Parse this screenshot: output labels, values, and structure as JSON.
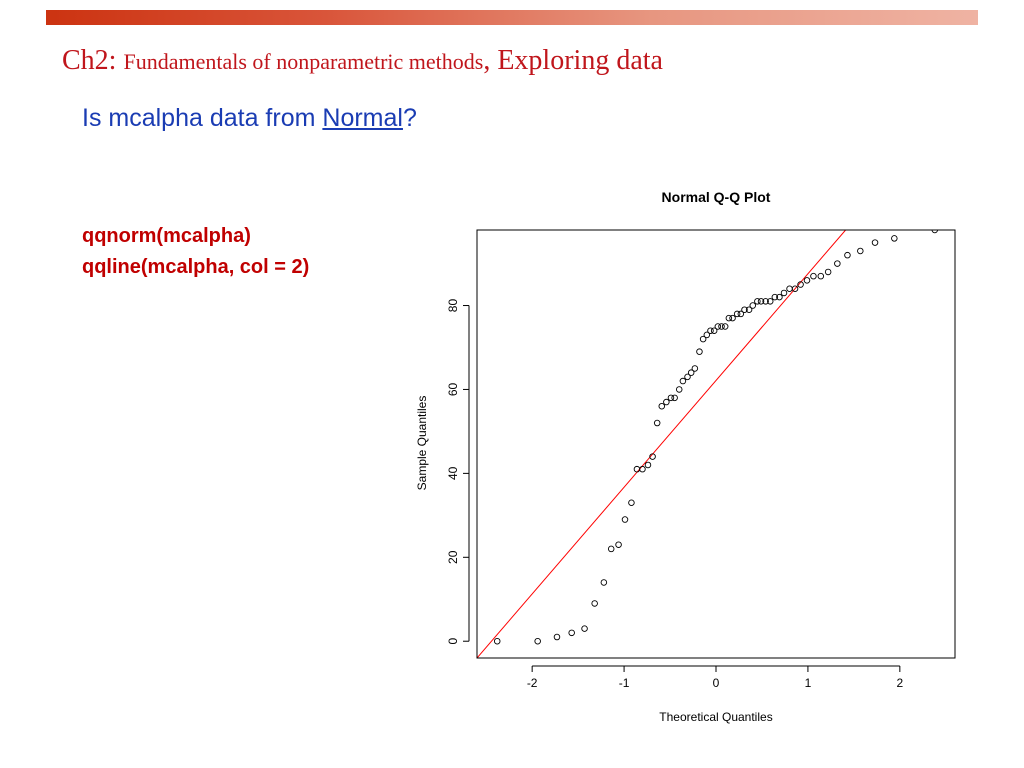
{
  "slide": {
    "title_part1": "Ch2: ",
    "title_part2": "Fundamentals of nonparametric methods",
    "title_part3": ", Exploring data",
    "question_prefix": "Is mcalpha data from ",
    "question_link": "Normal",
    "question_suffix": "?",
    "code_line_1": "qqnorm(mcalpha)",
    "code_line_2": "qqline(mcalpha, col = 2)",
    "accent_color": "#c0161c",
    "subtitle_color": "#1a3cb3",
    "code_color": "#c00000"
  },
  "chart_data": {
    "type": "scatter",
    "title": "Normal Q-Q Plot",
    "xlabel": "Theoretical Quantiles",
    "ylabel": "Sample Quantiles",
    "xlim": [
      -2.6,
      2.6
    ],
    "ylim": [
      -4,
      98
    ],
    "xticks": [
      -2,
      -1,
      0,
      1,
      2
    ],
    "yticks": [
      0,
      20,
      40,
      60,
      80
    ],
    "grid": false,
    "point_color": "#000000",
    "line_color": "#ff0000",
    "reference_line": {
      "label": "qqline",
      "x1": -2.6,
      "y1": -4,
      "x2": 1.41,
      "y2": 98
    },
    "x": [
      -2.38,
      -1.94,
      -1.73,
      -1.57,
      -1.43,
      -1.32,
      -1.22,
      -1.14,
      -1.06,
      -0.99,
      -0.92,
      -0.86,
      -0.8,
      -0.74,
      -0.69,
      -0.64,
      -0.59,
      -0.54,
      -0.49,
      -0.45,
      -0.4,
      -0.36,
      -0.31,
      -0.27,
      -0.23,
      -0.18,
      -0.14,
      -0.1,
      -0.06,
      -0.02,
      0.02,
      0.06,
      0.1,
      0.14,
      0.18,
      0.23,
      0.27,
      0.31,
      0.36,
      0.4,
      0.45,
      0.49,
      0.54,
      0.59,
      0.64,
      0.69,
      0.74,
      0.8,
      0.86,
      0.92,
      0.99,
      1.06,
      1.14,
      1.22,
      1.32,
      1.43,
      1.57,
      1.73,
      1.94,
      2.38
    ],
    "y": [
      0,
      0,
      1,
      2,
      3,
      9,
      14,
      22,
      23,
      29,
      33,
      41,
      41,
      42,
      44,
      52,
      56,
      57,
      58,
      58,
      60,
      62,
      63,
      64,
      65,
      69,
      72,
      73,
      74,
      74,
      75,
      75,
      75,
      77,
      77,
      78,
      78,
      79,
      79,
      80,
      81,
      81,
      81,
      81,
      82,
      82,
      83,
      84,
      84,
      85,
      86,
      87,
      87,
      88,
      90,
      92,
      93,
      95,
      96,
      98
    ]
  }
}
